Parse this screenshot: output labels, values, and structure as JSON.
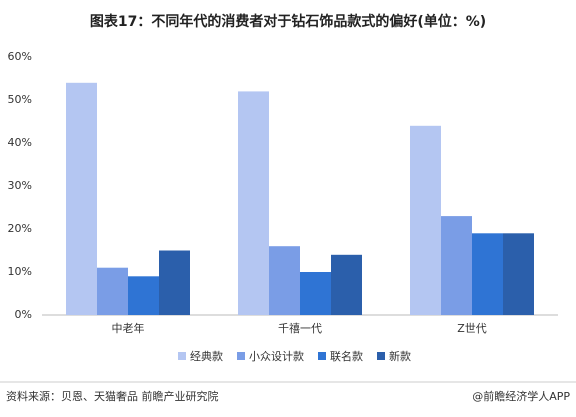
{
  "chart_data": {
    "type": "bar",
    "title": "图表17：不同年代的消费者对于钻石饰品款式的偏好(单位：%)",
    "categories": [
      "中老年",
      "千禧一代",
      "Z世代"
    ],
    "series": [
      {
        "name": "经典款",
        "color": "#b4c6f2",
        "values": [
          54,
          52,
          44
        ]
      },
      {
        "name": "小众设计款",
        "color": "#7a9de6",
        "values": [
          11,
          16,
          23
        ]
      },
      {
        "name": "联名款",
        "color": "#2f74d4",
        "values": [
          9,
          10,
          19
        ]
      },
      {
        "name": "新款",
        "color": "#2b5fab",
        "values": [
          15,
          14,
          19
        ]
      }
    ],
    "ylim": [
      0,
      60
    ],
    "yticks": [
      {
        "value": 0,
        "label": "0%"
      },
      {
        "value": 10,
        "label": "10%"
      },
      {
        "value": 20,
        "label": "20%"
      },
      {
        "value": 30,
        "label": "30%"
      },
      {
        "value": 40,
        "label": "40%"
      },
      {
        "value": 50,
        "label": "50%"
      },
      {
        "value": 60,
        "label": "60%"
      }
    ],
    "grid": false,
    "source": "资料来源：贝恩、天猫奢品 前瞻产业研究院",
    "credit": "@前瞻经济学人APP"
  }
}
